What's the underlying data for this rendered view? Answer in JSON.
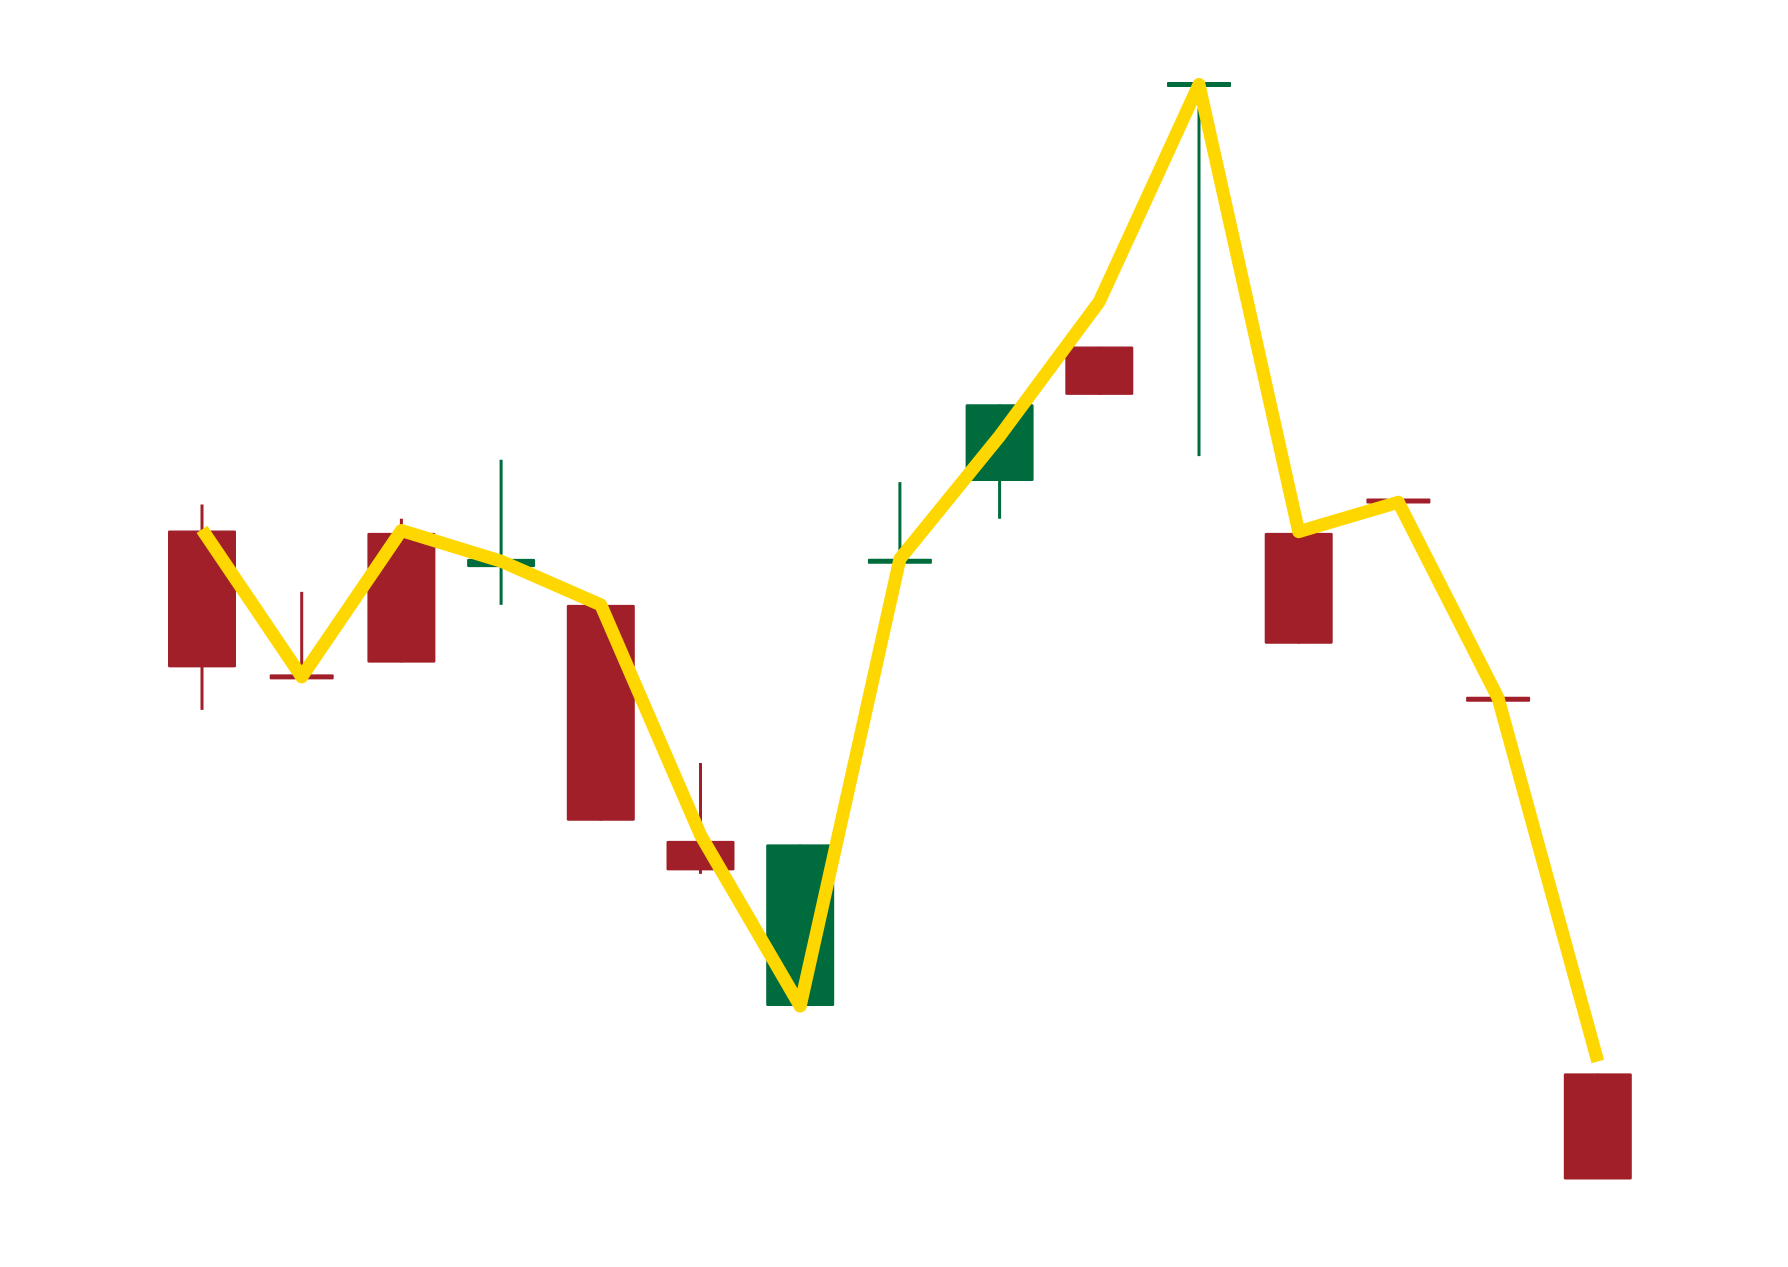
{
  "chart_data": {
    "type": "candlestick",
    "title": "",
    "xlabel": "",
    "ylabel": "",
    "ylim": [
      0,
      100
    ],
    "grid": false,
    "legend": "none",
    "colors": {
      "up": "#006B3C",
      "down": "#A01F28",
      "line": "#FFD700",
      "background": "#FFFFFF"
    },
    "candles": [
      {
        "open": 58.6,
        "close": 47.0,
        "high": 60.8,
        "low": 43.4
      },
      {
        "open": 46.4,
        "close": 46.0,
        "high": 53.4,
        "low": 46.0
      },
      {
        "open": 58.4,
        "close": 47.4,
        "high": 59.6,
        "low": 47.4
      },
      {
        "open": 55.5,
        "close": 56.2,
        "high": 64.6,
        "low": 52.3
      },
      {
        "open": 52.3,
        "close": 34.0,
        "high": 52.3,
        "low": 34.0
      },
      {
        "open": 32.3,
        "close": 29.8,
        "high": 38.9,
        "low": 29.5
      },
      {
        "open": 18.3,
        "close": 32.0,
        "high": 32.0,
        "low": 18.3
      },
      {
        "open": 55.8,
        "close": 56.2,
        "high": 62.7,
        "low": 55.8
      },
      {
        "open": 62.8,
        "close": 69.3,
        "high": 69.3,
        "low": 59.6
      },
      {
        "open": 74.2,
        "close": 70.1,
        "high": 74.2,
        "low": 70.1
      },
      {
        "open": 96.4,
        "close": 96.4,
        "high": 96.4,
        "low": 64.9
      },
      {
        "open": 58.4,
        "close": 49.0,
        "high": 58.4,
        "low": 49.0
      },
      {
        "open": 61.2,
        "close": 61.0,
        "high": 61.2,
        "low": 61.0
      },
      {
        "open": 44.4,
        "close": 44.2,
        "high": 44.4,
        "low": 44.2
      },
      {
        "open": 12.6,
        "close": 3.6,
        "high": 12.6,
        "low": 3.6
      }
    ],
    "line": [
      58.7,
      46.2,
      58.6,
      56.0,
      52.3,
      32.8,
      18.3,
      56.2,
      66.6,
      78.0,
      96.4,
      58.5,
      61.0,
      44.4,
      13.6
    ]
  }
}
